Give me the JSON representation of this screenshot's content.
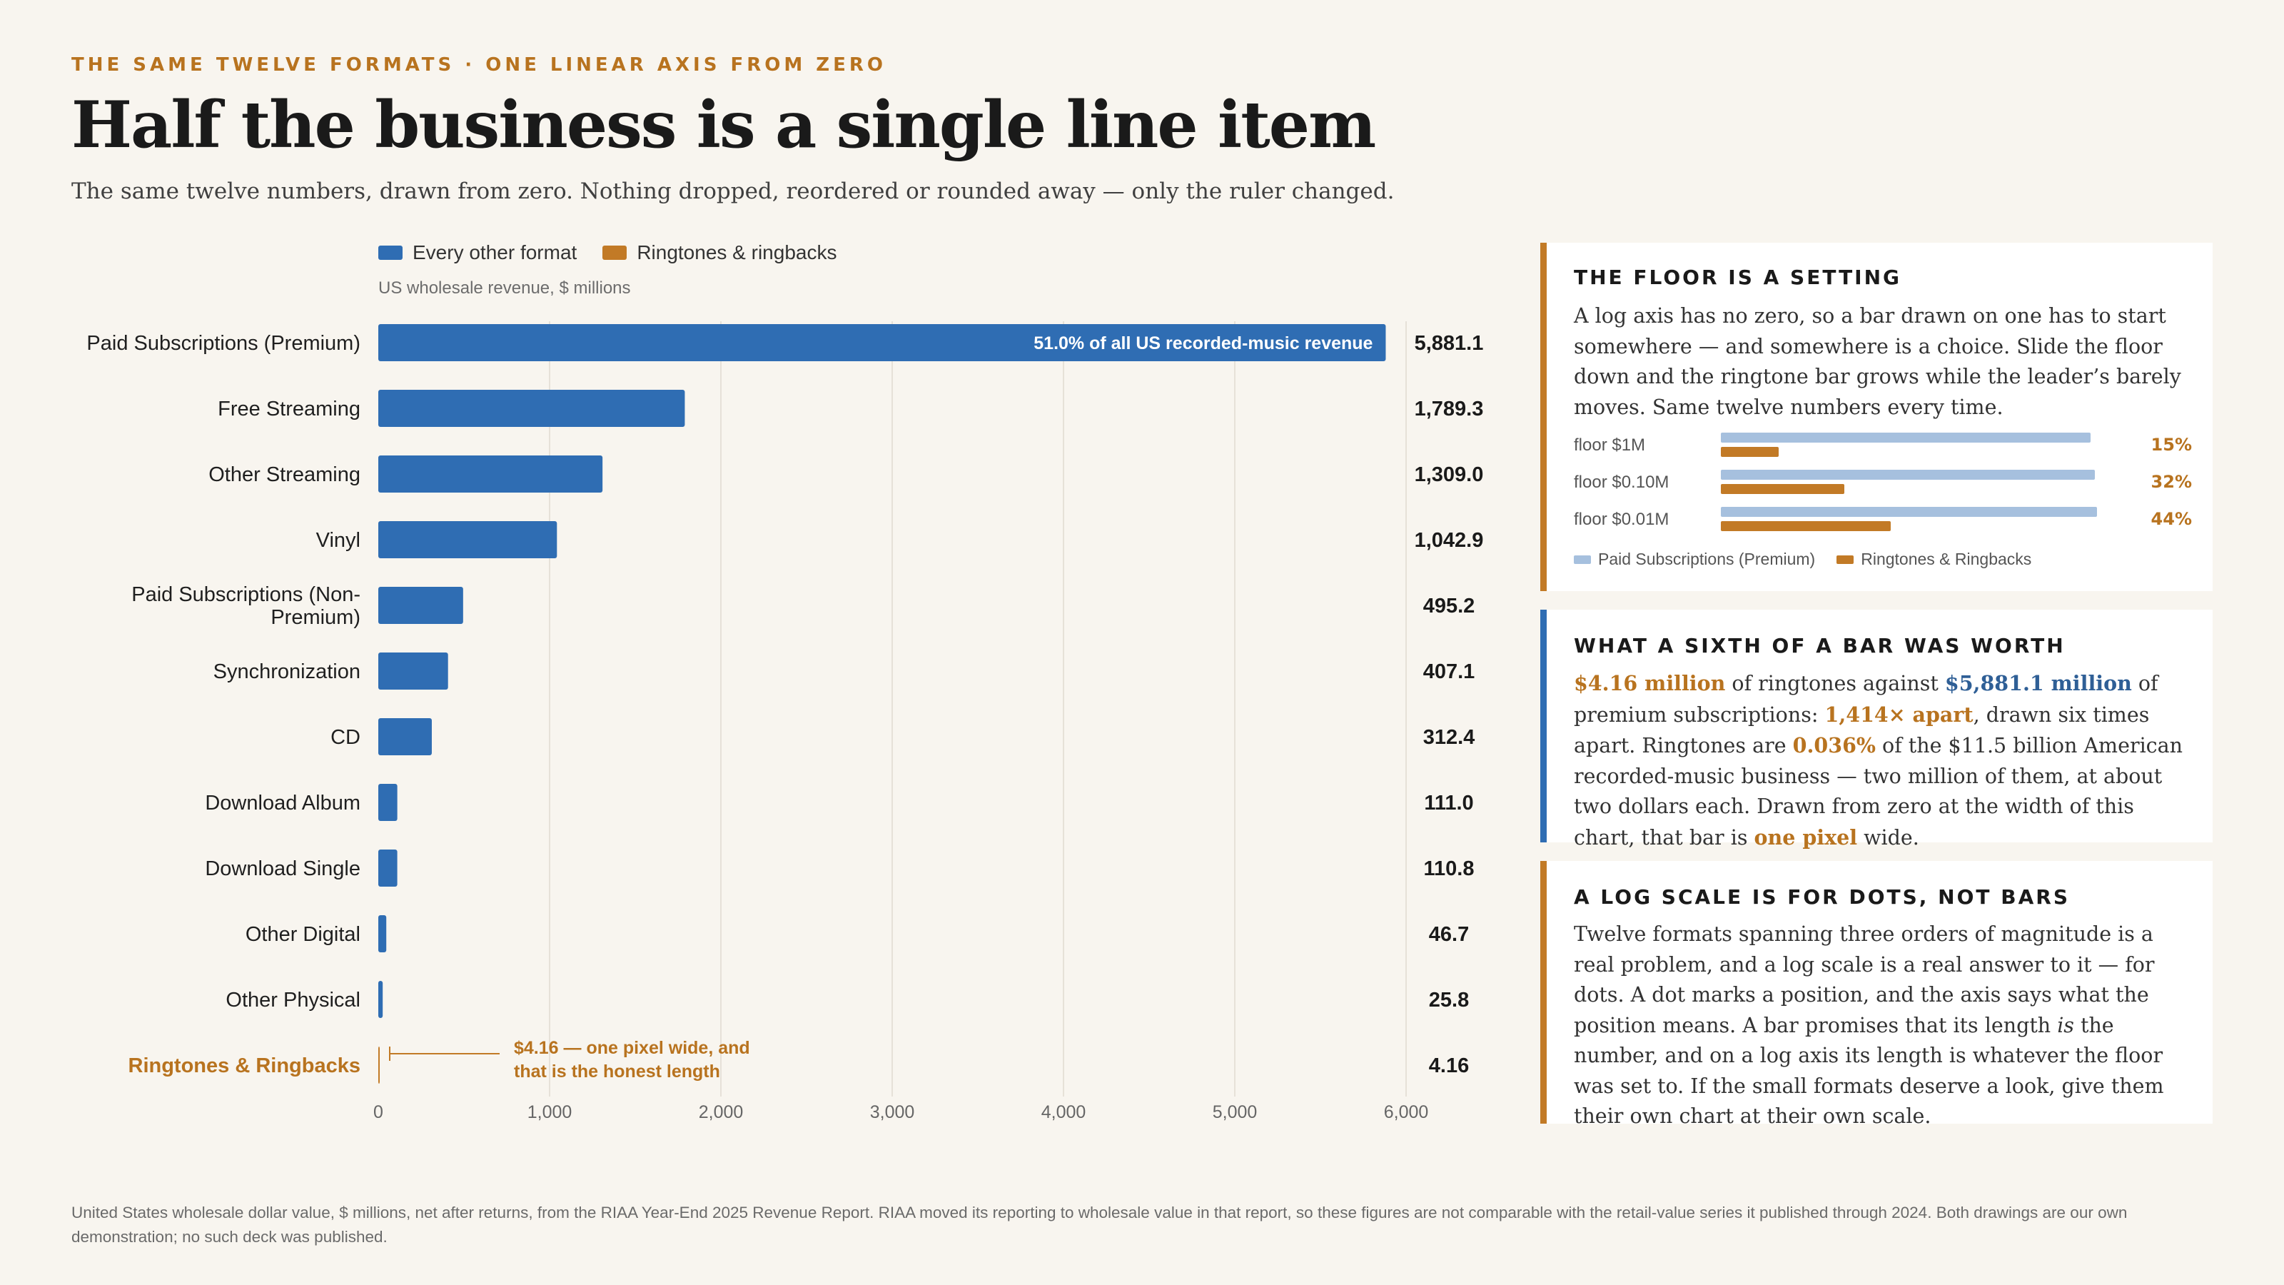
{
  "header": {
    "kicker": "THE SAME TWELVE FORMATS · ONE LINEAR AXIS FROM ZERO",
    "title": "Half the business is a single line item",
    "subtitle": "The same twelve numbers, drawn from zero. Nothing dropped, reordered or rounded away — only the ruler changed."
  },
  "legend": {
    "items": [
      {
        "label": "Every other format",
        "color": "#2f6db3"
      },
      {
        "label": "Ringtones & ringbacks",
        "color": "#c27a26"
      }
    ]
  },
  "units": "US wholesale revenue, $ millions",
  "colors": {
    "blue": "#2f6db3",
    "orange": "#c27a26",
    "orange_text": "#b8731f",
    "grid": "#e6e1d8"
  },
  "chart_data": {
    "type": "bar",
    "orientation": "horizontal",
    "ylabel": "US wholesale revenue, $ millions",
    "xlim": [
      0,
      6000
    ],
    "x_ticks": [
      0,
      1000,
      2000,
      3000,
      4000,
      5000,
      6000
    ],
    "x_tick_labels": [
      "0",
      "1,000",
      "2,000",
      "3,000",
      "4,000",
      "5,000",
      "6,000"
    ],
    "grid": true,
    "categories": [
      "Paid Subscriptions (Premium)",
      "Free Streaming",
      "Other Streaming",
      "Vinyl",
      "Paid Subscriptions (Non-Premium)",
      "Synchronization",
      "CD",
      "Download Album",
      "Download Single",
      "Other Digital",
      "Other Physical",
      "Ringtones & Ringbacks"
    ],
    "category_lines": [
      [
        "Paid Subscriptions (Premium)"
      ],
      [
        "Free Streaming"
      ],
      [
        "Other Streaming"
      ],
      [
        "Vinyl"
      ],
      [
        "Paid Subscriptions (Non-",
        "Premium)"
      ],
      [
        "Synchronization"
      ],
      [
        "CD"
      ],
      [
        "Download Album"
      ],
      [
        "Download Single"
      ],
      [
        "Other Digital"
      ],
      [
        "Other Physical"
      ],
      [
        "Ringtones & Ringbacks"
      ]
    ],
    "values": [
      5881.1,
      1789.3,
      1309.0,
      1042.9,
      495.2,
      407.1,
      312.4,
      111.0,
      110.8,
      46.7,
      25.8,
      4.16
    ],
    "value_labels": [
      "5,881.1",
      "1,789.3",
      "1,309.0",
      "1,042.9",
      "495.2",
      "407.1",
      "312.4",
      "111.0",
      "110.8",
      "46.7",
      "25.8",
      "4.16"
    ],
    "highlight_index": 11,
    "annotations": {
      "inside_bar": "51.0% of all US recorded-music revenue",
      "callout_lines": [
        "$4.16 — one pixel wide, and",
        "that is the honest length"
      ]
    }
  },
  "cards": {
    "floor": {
      "title": "THE FLOOR IS A SETTING",
      "body": "A log axis has no zero, so a bar drawn on one has to start somewhere — and somewhere is a choice. Slide the floor down and the ringtone bar grows while the leader’s barely moves. Same twelve numbers every time.",
      "rows": [
        {
          "label": "floor $1M",
          "premium_fraction": 0.96,
          "ringtone_fraction": 0.15,
          "pct": "15%"
        },
        {
          "label": "floor $0.10M",
          "premium_fraction": 0.97,
          "ringtone_fraction": 0.32,
          "pct": "32%"
        },
        {
          "label": "floor $0.01M",
          "premium_fraction": 0.975,
          "ringtone_fraction": 0.44,
          "pct": "44%"
        }
      ],
      "legend": [
        "Paid Subscriptions (Premium)",
        "Ringtones & Ringbacks"
      ],
      "legend_colors": [
        "#a6c0de",
        "#c27a26"
      ]
    },
    "sixth": {
      "title": "WHAT A SIXTH OF A BAR WAS WORTH",
      "h1": "$4.16 million",
      "t1": " of ringtones against ",
      "h2": "$5,881.1 million",
      "t2": " of premium subscriptions: ",
      "h3": "1,414× apart",
      "t3": ", drawn six times apart. Ringtones are ",
      "h4": "0.036%",
      "t4": " of the $11.5 billion American recorded-music business — two million of them, at about two dollars each. Drawn from zero at the width of this chart, that bar is ",
      "h5": "one pixel",
      "t5": " wide."
    },
    "log": {
      "title": "A LOG SCALE IS FOR DOTS, NOT BARS",
      "t1": "Twelve formats spanning three orders of magnitude is a real problem, and a log scale is a real answer to it — for dots. A dot marks a position, and the axis says what the position means. A bar promises that its length ",
      "em": "is",
      "t2": " the number, and on a log axis its length is whatever the floor was set to. If the small formats deserve a look, give them their own chart at their own scale."
    }
  },
  "footnote": "United States wholesale dollar value, $ millions, net after returns, from the RIAA Year-End 2025 Revenue Report. RIAA moved its reporting to wholesale value in that report, so these figures are not comparable with the retail-value series it published through 2024. Both drawings are our own demonstration; no such deck was published."
}
